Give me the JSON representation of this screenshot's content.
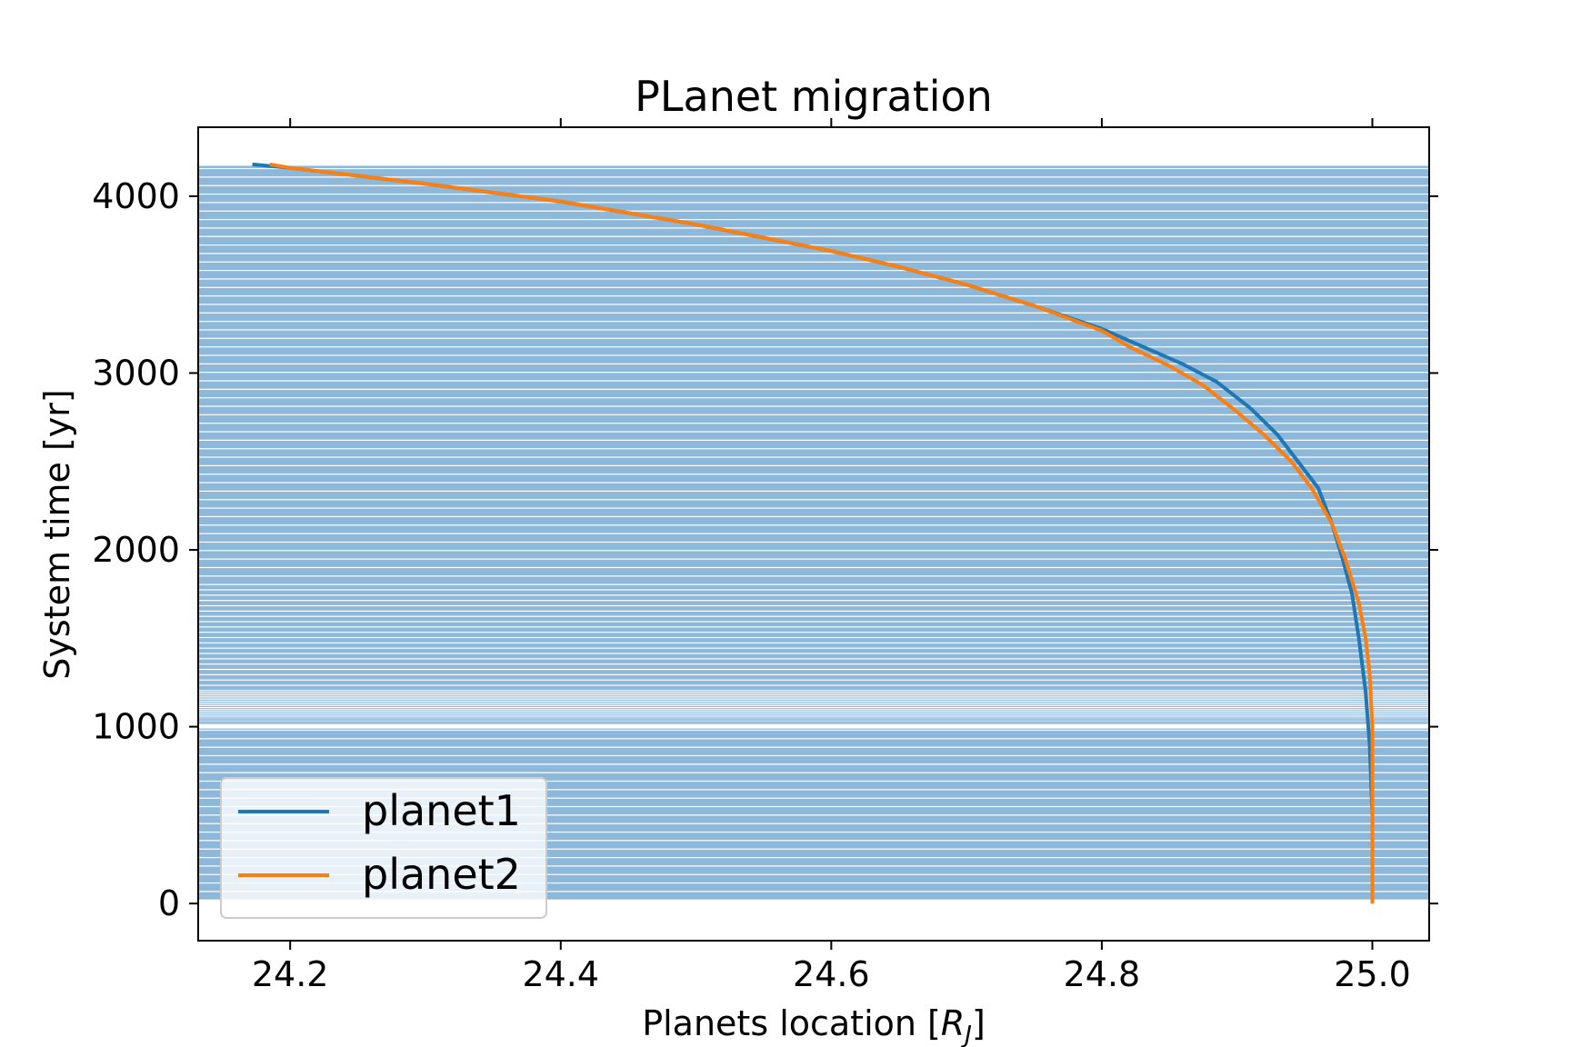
{
  "chart_data": {
    "type": "line",
    "title": "PLanet migration",
    "xlabel": {
      "main": "Planets location [",
      "sym": "R",
      "sub": "J",
      "close": "]"
    },
    "ylabel": "System time [yr]",
    "xlim": [
      24.132,
      25.042
    ],
    "ylim": [
      -210,
      4390
    ],
    "xticks": [
      {
        "value": 24.2,
        "label": "24.2"
      },
      {
        "value": 24.4,
        "label": "24.4"
      },
      {
        "value": 24.6,
        "label": "24.6"
      },
      {
        "value": 24.8,
        "label": "24.8"
      },
      {
        "value": 25.0,
        "label": "25.0"
      }
    ],
    "yticks": [
      {
        "value": 0,
        "label": "0"
      },
      {
        "value": 1000,
        "label": "1000"
      },
      {
        "value": 2000,
        "label": "2000"
      },
      {
        "value": 3000,
        "label": "3000"
      },
      {
        "value": 4000,
        "label": "4000"
      }
    ],
    "band": {
      "color": "#8db8d9",
      "y_range": [
        20,
        4175
      ],
      "gap_at": 1000
    },
    "legend": {
      "position": "lower-left"
    },
    "series": [
      {
        "name": "planet1",
        "color": "#1f77b4",
        "x": [
          25.0,
          25.0,
          24.998,
          24.995,
          24.99,
          24.985,
          24.978,
          24.97,
          24.96,
          24.945,
          24.93,
          24.91,
          24.885,
          24.86,
          24.83,
          24.8,
          24.75,
          24.7,
          24.65,
          24.6,
          24.5,
          24.4,
          24.3,
          24.2,
          24.172
        ],
        "y": [
          0,
          500,
          900,
          1200,
          1500,
          1750,
          1950,
          2150,
          2350,
          2500,
          2650,
          2800,
          2950,
          3050,
          3150,
          3250,
          3380,
          3500,
          3600,
          3690,
          3840,
          3970,
          4070,
          4160,
          4180
        ]
      },
      {
        "name": "planet2",
        "color": "#ff7f0e",
        "x": [
          25.0,
          25.0,
          24.998,
          24.995,
          24.99,
          24.98,
          24.97,
          24.955,
          24.94,
          24.92,
          24.9,
          24.875,
          24.85,
          24.82,
          24.8,
          24.75,
          24.7,
          24.65,
          24.6,
          24.5,
          24.4,
          24.3,
          24.2,
          24.185
        ],
        "y": [
          0,
          1000,
          1300,
          1500,
          1700,
          1950,
          2150,
          2350,
          2500,
          2650,
          2780,
          2930,
          3040,
          3150,
          3240,
          3380,
          3500,
          3600,
          3690,
          3840,
          3970,
          4070,
          4160,
          4180
        ]
      }
    ]
  }
}
